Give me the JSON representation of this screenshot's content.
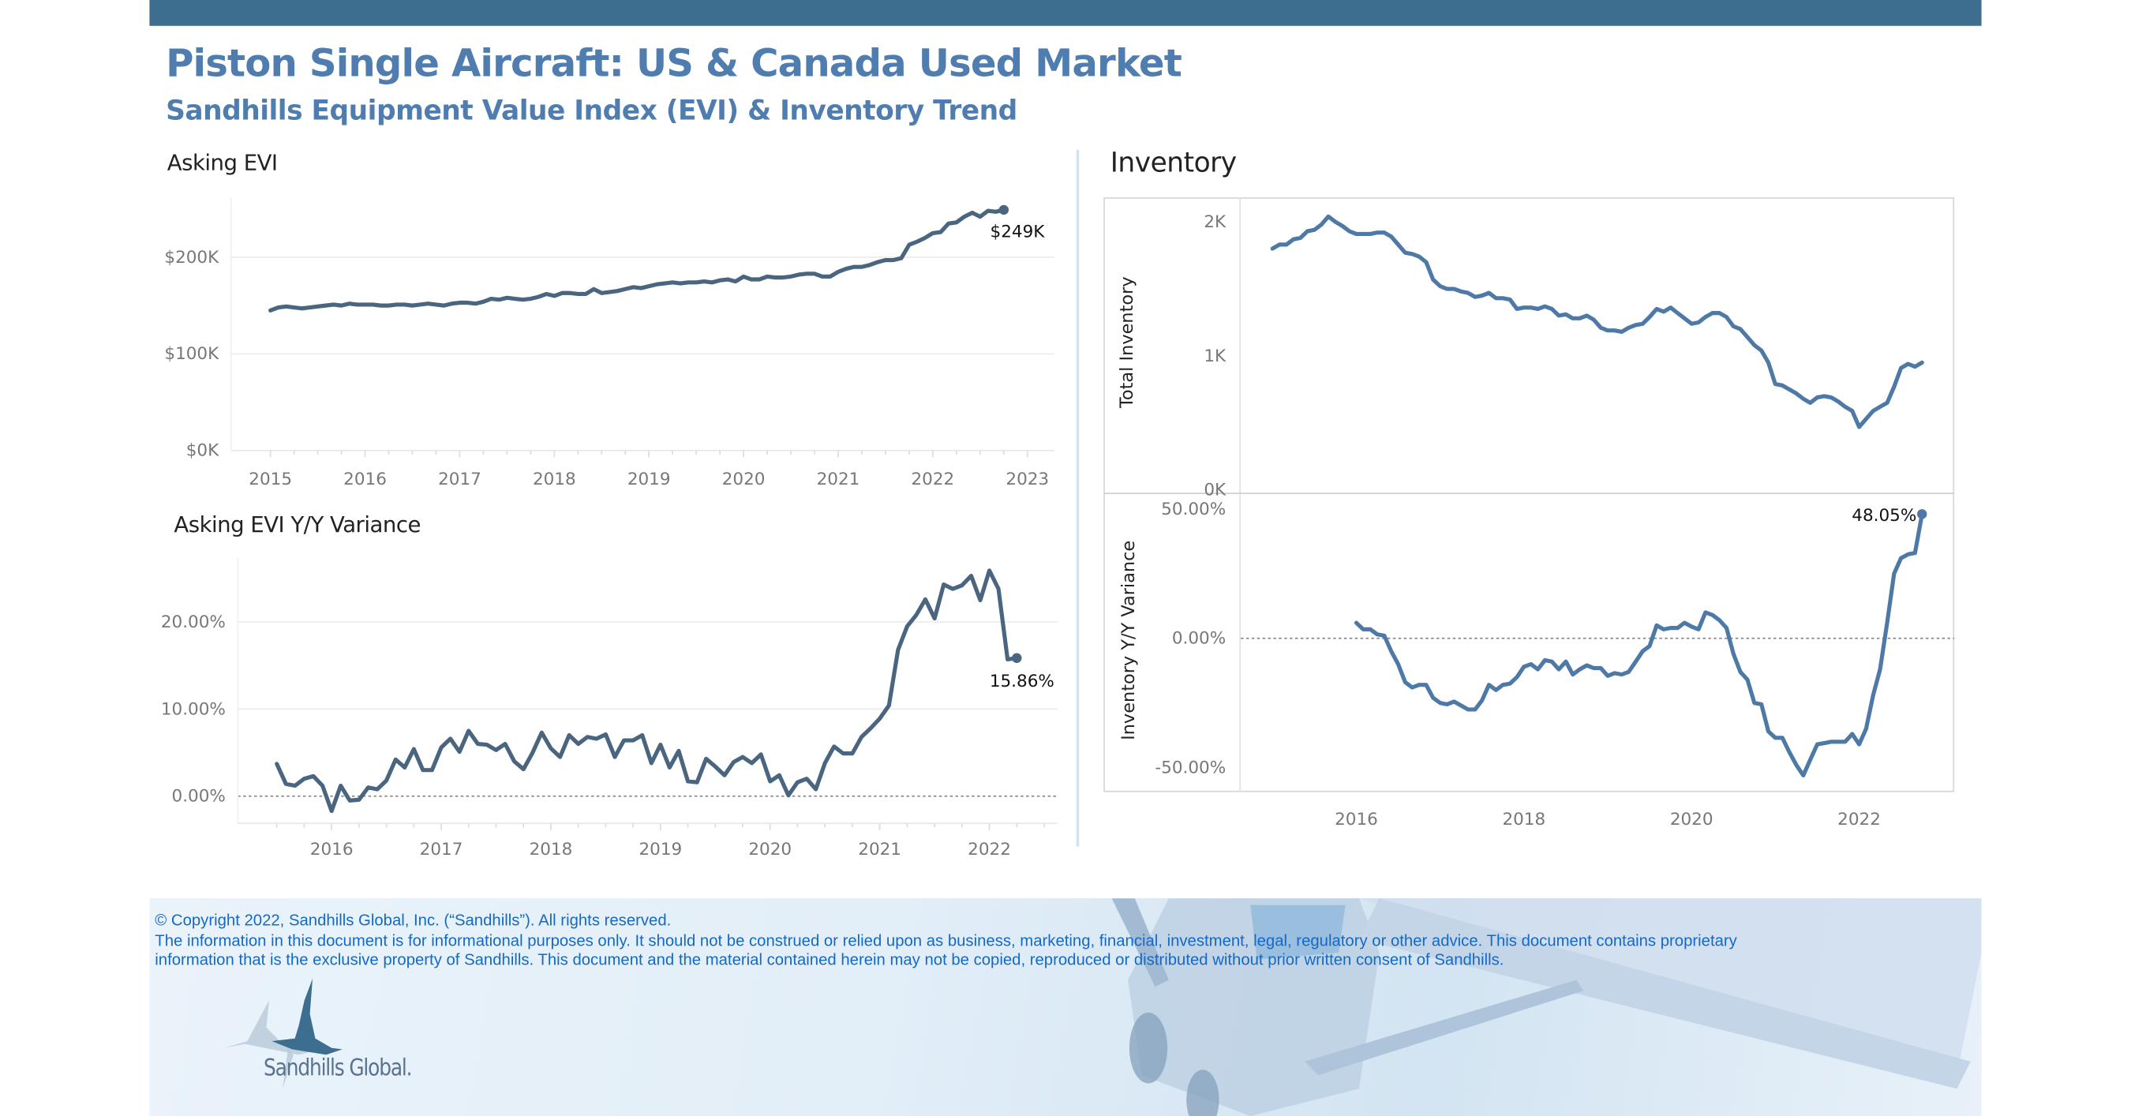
{
  "header": {
    "title": "Piston Single Aircraft:  US & Canada Used Market",
    "subtitle": "Sandhills Equipment Value Index (EVI) & Inventory Trend"
  },
  "inventory_panel": {
    "title": "Inventory"
  },
  "colors": {
    "topbar": "#3d6e8f",
    "title": "#4f7db0",
    "evi_line": "#4a6580",
    "inventory_line": "#4e79a7",
    "footer_text": "#1469c7"
  },
  "chart_data": [
    {
      "id": "asking-evi",
      "type": "line",
      "title": "Asking EVI",
      "ylabel": "",
      "x_start": "2015-01",
      "frequency": "monthly",
      "xlim": [
        2015,
        2023
      ],
      "ylim": [
        0,
        260000
      ],
      "grid": true,
      "xticks": [
        "2015",
        "2016",
        "2017",
        "2018",
        "2019",
        "2020",
        "2021",
        "2022",
        "2023"
      ],
      "yticks": [
        {
          "value": 0,
          "label": "$0K"
        },
        {
          "value": 100000,
          "label": "$100K"
        },
        {
          "value": 200000,
          "label": "$200K"
        }
      ],
      "end_label": "$249K",
      "values": [
        145000,
        148000,
        149000,
        148000,
        147000,
        148000,
        149000,
        150000,
        151000,
        150000,
        152000,
        151000,
        151000,
        151000,
        150000,
        150000,
        151000,
        151000,
        150000,
        151000,
        152000,
        151000,
        150000,
        152000,
        153000,
        153000,
        152000,
        154000,
        157000,
        156000,
        158000,
        157000,
        156000,
        157000,
        159000,
        162000,
        160000,
        163000,
        163000,
        162000,
        162000,
        167000,
        163000,
        164000,
        165000,
        167000,
        169000,
        168000,
        170000,
        172000,
        173000,
        174000,
        173000,
        174000,
        174000,
        175000,
        174000,
        176000,
        177000,
        175000,
        180000,
        177000,
        177000,
        180000,
        179000,
        179000,
        180000,
        182000,
        183000,
        183000,
        180000,
        180000,
        185000,
        188000,
        190000,
        190000,
        192000,
        195000,
        197000,
        197000,
        199000,
        213000,
        216000,
        220000,
        225000,
        226000,
        235000,
        236000,
        242000,
        246000,
        242000,
        248000,
        247000,
        249000
      ]
    },
    {
      "id": "asking-evi-yy",
      "type": "line",
      "title": "Asking EVI Y/Y Variance",
      "ylabel": "",
      "x_start": "2015-07",
      "frequency": "monthly",
      "xlim": [
        2015.3,
        2022.6
      ],
      "ylim": [
        -3,
        28
      ],
      "grid": true,
      "zero_line": "dotted",
      "xticks": [
        "2016",
        "2017",
        "2018",
        "2019",
        "2020",
        "2021",
        "2022"
      ],
      "yticks": [
        {
          "value": 0,
          "label": "0.00%"
        },
        {
          "value": 10,
          "label": "10.00%"
        },
        {
          "value": 20,
          "label": "20.00%"
        }
      ],
      "end_label": "15.86%",
      "values": [
        3.7,
        1.4,
        1.2,
        2.0,
        2.3,
        1.2,
        -1.7,
        1.2,
        -0.5,
        -0.4,
        1.0,
        0.8,
        1.8,
        4.2,
        3.3,
        5.4,
        3.0,
        3.0,
        5.6,
        6.6,
        5.1,
        7.5,
        6.0,
        5.9,
        5.3,
        6.0,
        4.0,
        3.1,
        5.0,
        7.3,
        5.5,
        4.5,
        7.0,
        6.0,
        6.8,
        6.6,
        7.1,
        4.5,
        6.4,
        6.4,
        7.0,
        3.8,
        5.9,
        3.3,
        5.2,
        1.7,
        1.6,
        4.3,
        3.4,
        2.4,
        3.9,
        4.5,
        3.8,
        4.8,
        1.7,
        2.4,
        0.1,
        1.6,
        2.0,
        0.8,
        3.8,
        5.7,
        4.9,
        4.9,
        6.8,
        7.8,
        8.9,
        10.4,
        16.8,
        19.5,
        20.8,
        22.6,
        20.4,
        24.3,
        23.8,
        24.2,
        25.3,
        22.5,
        25.9,
        23.8,
        15.7,
        15.86
      ]
    },
    {
      "id": "total-inventory",
      "type": "line",
      "title": "",
      "ylabel": "Total Inventory",
      "x_start": "2015-01",
      "frequency": "monthly",
      "xlim": [
        2014.6,
        2023.1
      ],
      "ylim": [
        0,
        2200
      ],
      "grid": false,
      "xticks": [
        "2016",
        "2018",
        "2020",
        "2022"
      ],
      "yticks": [
        {
          "value": 0,
          "label": "0K"
        },
        {
          "value": 1000,
          "label": "1K"
        },
        {
          "value": 2000,
          "label": "2K"
        }
      ],
      "values": [
        1800,
        1830,
        1830,
        1870,
        1880,
        1930,
        1940,
        1980,
        2040,
        2000,
        1970,
        1930,
        1910,
        1910,
        1910,
        1920,
        1920,
        1890,
        1830,
        1770,
        1760,
        1740,
        1700,
        1570,
        1520,
        1500,
        1500,
        1480,
        1470,
        1440,
        1450,
        1470,
        1430,
        1430,
        1420,
        1350,
        1360,
        1360,
        1350,
        1370,
        1350,
        1300,
        1310,
        1280,
        1280,
        1300,
        1270,
        1210,
        1190,
        1190,
        1180,
        1210,
        1230,
        1240,
        1290,
        1350,
        1330,
        1360,
        1320,
        1280,
        1240,
        1250,
        1290,
        1320,
        1320,
        1290,
        1220,
        1200,
        1140,
        1080,
        1040,
        950,
        790,
        780,
        750,
        720,
        680,
        650,
        690,
        700,
        690,
        660,
        620,
        590,
        470,
        530,
        590,
        620,
        650,
        770,
        910,
        940,
        920,
        950
      ]
    },
    {
      "id": "inventory-yy",
      "type": "line",
      "title": "",
      "ylabel": "Inventory  Y/Y Variance",
      "x_start": "2016-01",
      "frequency": "monthly",
      "xlim": [
        2014.6,
        2023.1
      ],
      "ylim": [
        -55,
        52
      ],
      "grid": false,
      "zero_line": "dotted",
      "xticks": [
        "2016",
        "2018",
        "2020",
        "2022"
      ],
      "yticks": [
        {
          "value": -50,
          "label": "-50.00%"
        },
        {
          "value": 0,
          "label": "0.00%"
        },
        {
          "value": 50,
          "label": "50.00%"
        }
      ],
      "end_label": "48.05%",
      "values": [
        6,
        3.5,
        3.5,
        1.5,
        1,
        -5,
        -10,
        -17,
        -19,
        -18,
        -18,
        -23,
        -25,
        -25.5,
        -24.5,
        -26,
        -27.5,
        -27.5,
        -24,
        -18,
        -20,
        -18,
        -17.5,
        -15,
        -11,
        -10,
        -12,
        -8.5,
        -9,
        -12,
        -9,
        -14,
        -12,
        -10.5,
        -11.5,
        -11.5,
        -14.5,
        -13.5,
        -14,
        -13,
        -9,
        -5,
        -3,
        5,
        3.5,
        4,
        4,
        6,
        4.5,
        3.5,
        10,
        9,
        7,
        4,
        -6,
        -13,
        -16,
        -25,
        -25.5,
        -36,
        -38.5,
        -38.5,
        -44,
        -49,
        -53,
        -47,
        -41,
        -40.5,
        -40,
        -40,
        -40,
        -37,
        -41,
        -35,
        -22,
        -12,
        6,
        25,
        31,
        32.5,
        33,
        48.05
      ]
    }
  ],
  "footer": {
    "copyright": "© Copyright 2022, Sandhills Global, Inc. (“Sandhills”). All rights reserved.",
    "disclaimer_line1": "The information in this document is for informational purposes only.  It should not be construed or relied upon as business, marketing, financial, investment, legal, regulatory or other advice. This document contains proprietary",
    "disclaimer_line2": "information that is the exclusive property of Sandhills. This document and the material contained herein may not be copied, reproduced or distributed without prior written consent of Sandhills.",
    "logo_text": "Sandhills Global."
  }
}
